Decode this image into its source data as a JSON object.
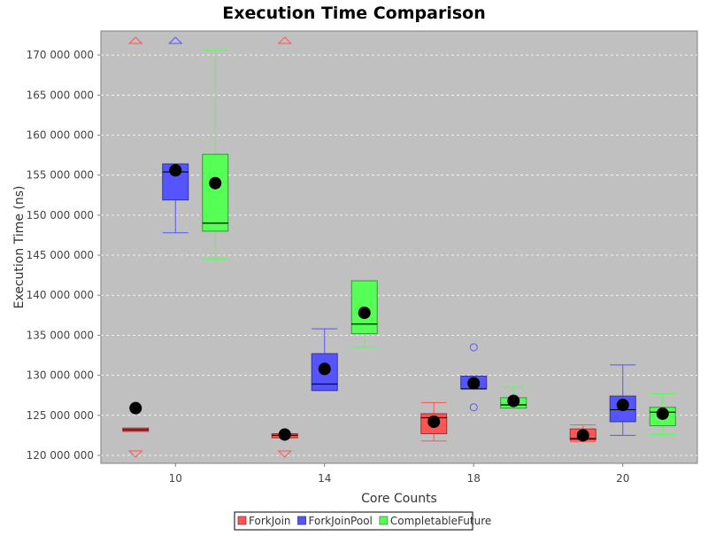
{
  "chart_data": {
    "type": "box",
    "title": "Execution Time Comparison",
    "xlabel": "Core Counts",
    "ylabel": "Execution Time (ns)",
    "ylim": [
      119000000,
      173000000
    ],
    "yticks": [
      120000000,
      125000000,
      130000000,
      135000000,
      140000000,
      145000000,
      150000000,
      155000000,
      160000000,
      165000000,
      170000000
    ],
    "ytick_labels": [
      "120 000 000",
      "125 000 000",
      "130 000 000",
      "135 000 000",
      "140 000 000",
      "145 000 000",
      "150 000 000",
      "155 000 000",
      "160 000 000",
      "165 000 000",
      "170 000 000"
    ],
    "categories": [
      "10",
      "14",
      "18",
      "20"
    ],
    "background": "#c0c0c0",
    "grid": true,
    "legend_position": "bottom",
    "series": [
      {
        "name": "ForkJoin",
        "color": "#ff5555",
        "boxes": [
          {
            "min": 123000000,
            "q1": 123000000,
            "median": 123200000,
            "q3": 123400000,
            "max": 123400000,
            "mean": 125900000,
            "outliers": [],
            "far_out_high": true,
            "far_out_low": true
          },
          {
            "min": 122200000,
            "q1": 122200000,
            "median": 122500000,
            "q3": 122700000,
            "max": 122700000,
            "mean": 122600000,
            "outliers": [],
            "far_out_high": true,
            "far_out_low": true
          },
          {
            "min": 121800000,
            "q1": 122700000,
            "median": 124700000,
            "q3": 125200000,
            "max": 126600000,
            "mean": 124200000,
            "outliers": [],
            "far_out_high": false,
            "far_out_low": false
          },
          {
            "min": 121700000,
            "q1": 121900000,
            "median": 122100000,
            "q3": 123300000,
            "max": 123800000,
            "mean": 122500000,
            "outliers": [],
            "far_out_high": false,
            "far_out_low": false
          }
        ]
      },
      {
        "name": "ForkJoinPool",
        "color": "#5555ff",
        "boxes": [
          {
            "min": 147800000,
            "q1": 151900000,
            "median": 155400000,
            "q3": 156400000,
            "max": 156400000,
            "mean": 155600000,
            "outliers": [],
            "far_out_high": true,
            "far_out_low": false
          },
          {
            "min": 128100000,
            "q1": 128100000,
            "median": 128900000,
            "q3": 132700000,
            "max": 135800000,
            "mean": 130800000,
            "outliers": [],
            "far_out_high": false,
            "far_out_low": false
          },
          {
            "min": 128300000,
            "q1": 128300000,
            "median": 128300000,
            "q3": 129900000,
            "max": 129900000,
            "mean": 129000000,
            "outliers": [
              133500000,
              126000000
            ],
            "far_out_high": false,
            "far_out_low": false
          },
          {
            "min": 122500000,
            "q1": 124200000,
            "median": 125700000,
            "q3": 127400000,
            "max": 131300000,
            "mean": 126300000,
            "outliers": [],
            "far_out_high": false,
            "far_out_low": false
          }
        ]
      },
      {
        "name": "CompletableFuture",
        "color": "#55ff55",
        "boxes": [
          {
            "min": 144500000,
            "q1": 148000000,
            "median": 149000000,
            "q3": 157600000,
            "max": 170600000,
            "mean": 154000000,
            "outliers": [],
            "far_out_high": false,
            "far_out_low": false
          },
          {
            "min": 133500000,
            "q1": 135200000,
            "median": 136400000,
            "q3": 141800000,
            "max": 141800000,
            "mean": 137800000,
            "outliers": [],
            "far_out_high": false,
            "far_out_low": false
          },
          {
            "min": 125900000,
            "q1": 125900000,
            "median": 126300000,
            "q3": 127200000,
            "max": 128500000,
            "mean": 126800000,
            "outliers": [],
            "far_out_high": false,
            "far_out_low": false
          },
          {
            "min": 122600000,
            "q1": 123700000,
            "median": 125400000,
            "q3": 126000000,
            "max": 127700000,
            "mean": 125200000,
            "outliers": [],
            "far_out_high": false,
            "far_out_low": false
          }
        ]
      }
    ]
  }
}
